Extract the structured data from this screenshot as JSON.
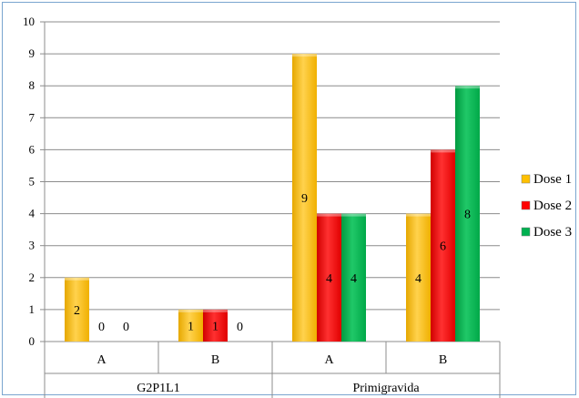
{
  "chart_data": {
    "type": "bar",
    "title": "",
    "xlabel": "",
    "ylabel": "",
    "ylim": [
      0,
      10
    ],
    "yticks": [
      0,
      1,
      2,
      3,
      4,
      5,
      6,
      7,
      8,
      9,
      10
    ],
    "grid": true,
    "legend": "right",
    "groups": [
      "G2P1L1",
      "Primigravida"
    ],
    "categories": [
      "A",
      "B",
      "A",
      "B"
    ],
    "series": [
      {
        "name": "Dose 1",
        "color": "#ffc000",
        "values": [
          2,
          1,
          9,
          4
        ]
      },
      {
        "name": "Dose 2",
        "color": "#ff0000",
        "values": [
          0,
          1,
          4,
          6
        ]
      },
      {
        "name": "Dose 3",
        "color": "#00b050",
        "values": [
          0,
          0,
          4,
          8
        ]
      }
    ]
  }
}
